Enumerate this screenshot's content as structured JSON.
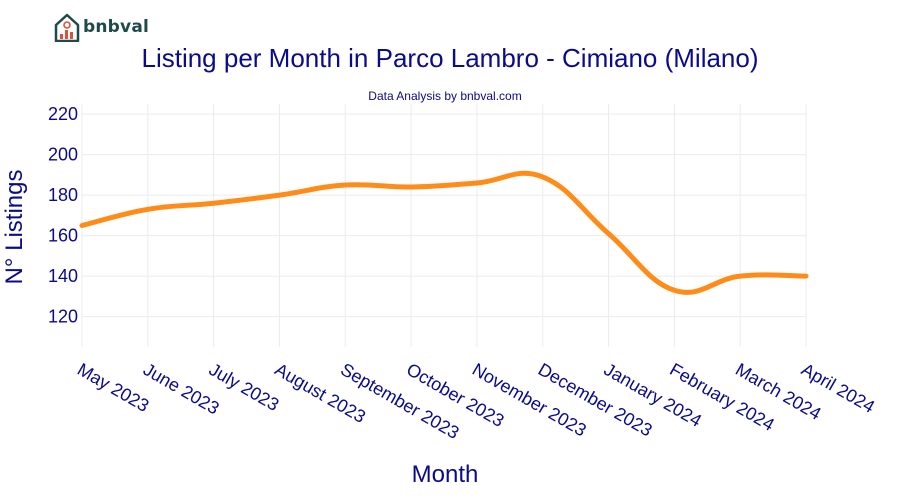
{
  "brand": {
    "name": "bnbval",
    "logo_icon": "house-chart-logo",
    "color": "#1d4a4a"
  },
  "chart_data": {
    "type": "line",
    "title": "Listing per Month in Parco Lambro - Cimiano (Milano)",
    "subtitle": "Data Analysis by bnbval.com",
    "xlabel": "Month",
    "ylabel": "N° Listings",
    "categories": [
      "May 2023",
      "June 2023",
      "July 2023",
      "August 2023",
      "September 2023",
      "October 2023",
      "November 2023",
      "December 2023",
      "January 2024",
      "February 2024",
      "March 2024",
      "April 2024"
    ],
    "series": [
      {
        "values": [
          165,
          173,
          176,
          180,
          185,
          184,
          186,
          189,
          161,
          133,
          140,
          140
        ],
        "color": "#ff8c19"
      }
    ],
    "ylim": [
      105,
      225
    ],
    "yticks": [
      120,
      140,
      160,
      180,
      200,
      220
    ],
    "grid": true
  }
}
